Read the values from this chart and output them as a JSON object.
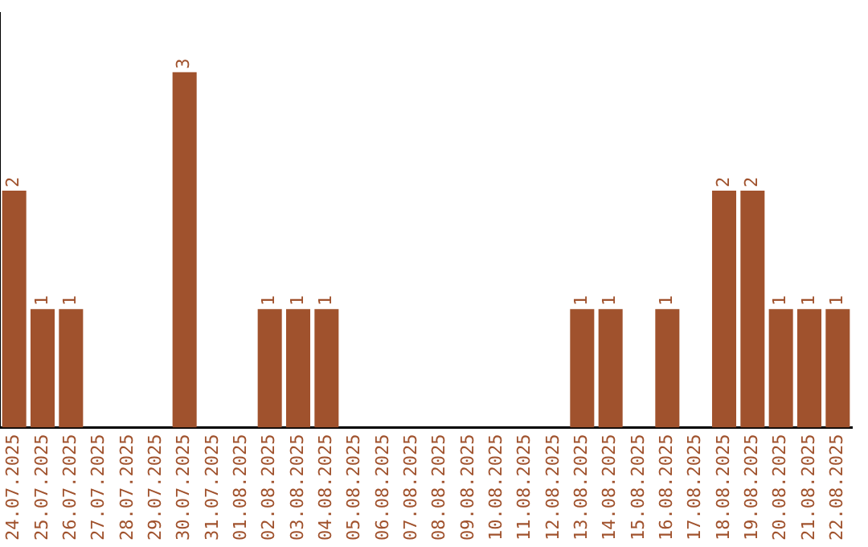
{
  "chart_data": {
    "type": "bar",
    "categories": [
      "24.07.2025",
      "25.07.2025",
      "26.07.2025",
      "27.07.2025",
      "28.07.2025",
      "29.07.2025",
      "30.07.2025",
      "31.07.2025",
      "01.08.2025",
      "02.08.2025",
      "03.08.2025",
      "04.08.2025",
      "05.08.2025",
      "06.08.2025",
      "07.08.2025",
      "08.08.2025",
      "09.08.2025",
      "10.08.2025",
      "11.08.2025",
      "12.08.2025",
      "13.08.2025",
      "14.08.2025",
      "15.08.2025",
      "16.08.2025",
      "17.08.2025",
      "18.08.2025",
      "19.08.2025",
      "20.08.2025",
      "21.08.2025",
      "22.08.2025"
    ],
    "values": [
      2,
      1,
      1,
      0,
      0,
      0,
      3,
      0,
      0,
      1,
      1,
      1,
      0,
      0,
      0,
      0,
      0,
      0,
      0,
      0,
      1,
      1,
      0,
      1,
      0,
      2,
      2,
      1,
      1,
      1
    ],
    "value_labels": [
      "2",
      "1",
      "1",
      null,
      null,
      null,
      "3",
      null,
      null,
      "1",
      "1",
      "1",
      null,
      null,
      null,
      null,
      null,
      null,
      null,
      null,
      "1",
      "1",
      null,
      "1",
      null,
      "2",
      "2",
      "1",
      "1",
      "1"
    ],
    "color": "#a0522d",
    "grid": false,
    "legend": false,
    "tick_labels": "x"
  }
}
